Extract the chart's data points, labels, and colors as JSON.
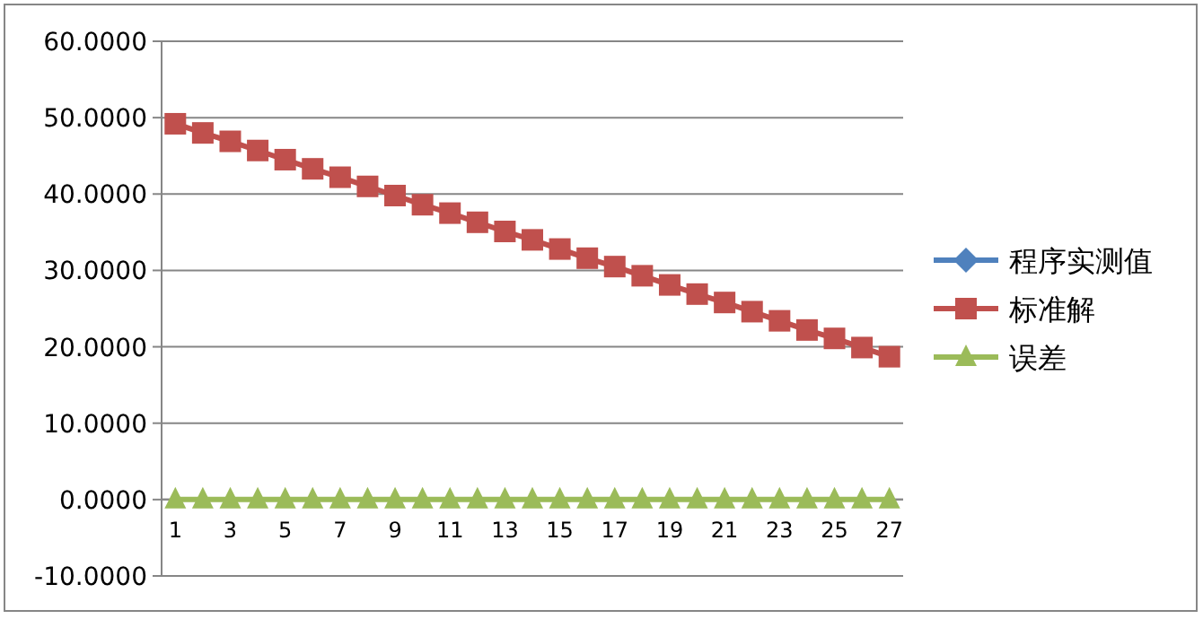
{
  "chart_data": {
    "type": "line",
    "categories": [
      "1",
      null,
      "3",
      null,
      "5",
      null,
      "7",
      null,
      "9",
      null,
      "11",
      null,
      "13",
      null,
      "15",
      null,
      "17",
      null,
      "19",
      null,
      "21",
      null,
      "23",
      null,
      "25",
      null,
      "27"
    ],
    "series": [
      {
        "name": "程序实测值",
        "color": "#4f81bd",
        "marker": "diamond",
        "values": [
          null,
          null,
          null,
          null,
          null,
          null,
          null,
          null,
          null,
          null,
          null,
          null,
          null,
          null,
          null,
          null,
          null,
          null,
          null,
          null,
          null,
          null,
          null,
          null,
          null,
          null,
          null
        ]
      },
      {
        "name": "标准解",
        "color": "#c0504d",
        "marker": "square",
        "values": [
          49.2,
          48.0,
          46.9,
          45.7,
          44.5,
          43.3,
          42.2,
          41.0,
          39.8,
          38.6,
          37.5,
          36.3,
          35.1,
          34.0,
          32.8,
          31.6,
          30.5,
          29.3,
          28.1,
          26.9,
          25.8,
          24.6,
          23.4,
          22.2,
          21.1,
          19.9,
          18.7
        ]
      },
      {
        "name": "误差",
        "color": "#9bbb59",
        "marker": "triangle",
        "values": [
          0,
          0,
          0,
          0,
          0,
          0,
          0,
          0,
          0,
          0,
          0,
          0,
          0,
          0,
          0,
          0,
          0,
          0,
          0,
          0,
          0,
          0,
          0,
          0,
          0,
          0,
          0
        ]
      }
    ],
    "ylim": [
      -10,
      60
    ],
    "yticks": [
      {
        "value": -10,
        "label": "-10.0000"
      },
      {
        "value": 0,
        "label": "0.0000"
      },
      {
        "value": 10,
        "label": "10.0000"
      },
      {
        "value": 20,
        "label": "20.0000"
      },
      {
        "value": 30,
        "label": "30.0000"
      },
      {
        "value": 40,
        "label": "40.0000"
      },
      {
        "value": 50,
        "label": "50.0000"
      },
      {
        "value": 60,
        "label": "60.0000"
      }
    ],
    "grid": "y",
    "legend": "right"
  }
}
